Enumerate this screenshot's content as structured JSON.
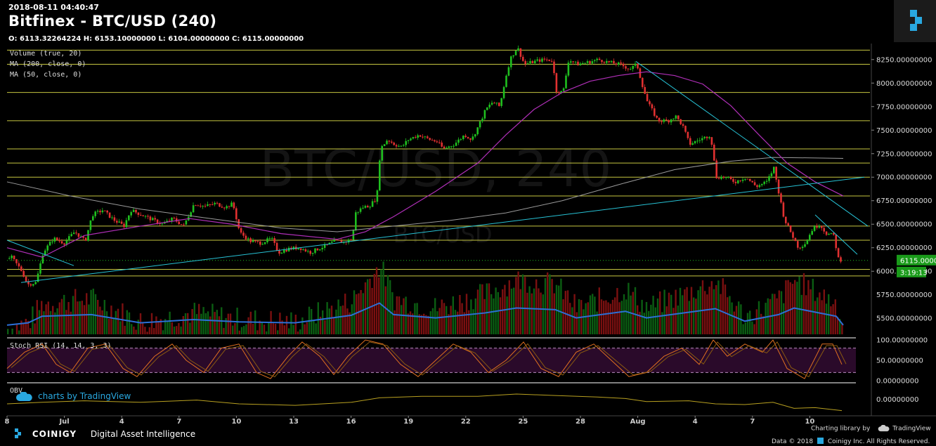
{
  "header": {
    "timestamp": "2018-08-11 04:40:47",
    "title": "Bitfinex - BTC/USD (240)",
    "ohlc": "O: 6113.32264224 H: 6153.10000000 L: 6104.00000000 C: 6115.00000000"
  },
  "watermark": {
    "main": "BTC/USD, 240",
    "sub": "BTC/USD"
  },
  "indicators": {
    "volume": "Volume (true, 20)",
    "ma200": "MA (200, close, 0)",
    "ma50": "MA (50, close, 0)",
    "stoch": "Stoch RSI (14, 14, 3, 3)",
    "obv": "OBV"
  },
  "footer": {
    "brand": "COINIGY",
    "tagline": "Digital Asset Intelligence",
    "charting_library": "Charting library by",
    "tradingview": "TradingView",
    "copyright": "Data © 2018",
    "rights": "Coinigy Inc. All Rights Reserved.",
    "tv_credit": "charts by TradingView"
  },
  "colors": {
    "up": "#1fbf1f",
    "down": "#e03030",
    "ma50": "#b02fb8",
    "ma200": "#9a9a9a",
    "hline": "#c6c640",
    "trend": "#27c3d6",
    "price_tag": "#1a9b1a"
  },
  "chart_data": [
    {
      "type": "candlestick",
      "title": "Bitfinex - BTC/USD (240)",
      "x_labels": [
        "8",
        "Jul",
        "4",
        "7",
        "10",
        "13",
        "16",
        "19",
        "22",
        "25",
        "28",
        "Aug",
        "4",
        "7",
        "10"
      ],
      "y_ticks": [
        "6000.00000000",
        "6250.00000000",
        "6500.00000000",
        "6750.00000000",
        "7000.00000000",
        "7250.00000000",
        "7500.00000000",
        "7750.00000000",
        "8000.00000000",
        "8250.00000000"
      ],
      "ylim": [
        5300,
        8420
      ],
      "horizontal_levels": [
        5950,
        6020,
        6330,
        6480,
        6800,
        7000,
        7150,
        7300,
        7600,
        7900,
        8200,
        8350
      ],
      "last_price": "6115.00000000",
      "countdown": "3:19:13",
      "volume_ticks": [
        "5500.00000000",
        "5750.00000000"
      ],
      "close_path": [
        [
          0,
          6100
        ],
        [
          15,
          6150
        ],
        [
          30,
          6000
        ],
        [
          38,
          5860
        ],
        [
          50,
          5880
        ],
        [
          60,
          6200
        ],
        [
          75,
          6350
        ],
        [
          90,
          6300
        ],
        [
          105,
          6420
        ],
        [
          120,
          6320
        ],
        [
          130,
          6600
        ],
        [
          145,
          6650
        ],
        [
          160,
          6550
        ],
        [
          175,
          6480
        ],
        [
          185,
          6650
        ],
        [
          200,
          6600
        ],
        [
          215,
          6550
        ],
        [
          230,
          6500
        ],
        [
          245,
          6560
        ],
        [
          260,
          6480
        ],
        [
          275,
          6720
        ],
        [
          290,
          6690
        ],
        [
          305,
          6720
        ],
        [
          320,
          6680
        ],
        [
          330,
          6720
        ],
        [
          340,
          6410
        ],
        [
          355,
          6320
        ],
        [
          370,
          6300
        ],
        [
          385,
          6350
        ],
        [
          395,
          6200
        ],
        [
          410,
          6240
        ],
        [
          425,
          6250
        ],
        [
          440,
          6200
        ],
        [
          455,
          6250
        ],
        [
          465,
          6280
        ],
        [
          475,
          6320
        ],
        [
          490,
          6310
        ],
        [
          500,
          6350
        ],
        [
          505,
          6620
        ],
        [
          515,
          6680
        ],
        [
          525,
          6700
        ],
        [
          535,
          6780
        ],
        [
          540,
          7300
        ],
        [
          550,
          7400
        ],
        [
          560,
          7350
        ],
        [
          570,
          7320
        ],
        [
          580,
          7400
        ],
        [
          595,
          7450
        ],
        [
          610,
          7400
        ],
        [
          620,
          7380
        ],
        [
          630,
          7300
        ],
        [
          645,
          7350
        ],
        [
          660,
          7450
        ],
        [
          670,
          7400
        ],
        [
          680,
          7550
        ],
        [
          690,
          7720
        ],
        [
          700,
          7800
        ],
        [
          710,
          7750
        ],
        [
          718,
          8050
        ],
        [
          725,
          8260
        ],
        [
          735,
          8380
        ],
        [
          745,
          8200
        ],
        [
          755,
          8220
        ],
        [
          765,
          8240
        ],
        [
          775,
          8250
        ],
        [
          785,
          8240
        ],
        [
          790,
          7920
        ],
        [
          800,
          7900
        ],
        [
          808,
          8250
        ],
        [
          820,
          8200
        ],
        [
          835,
          8220
        ],
        [
          850,
          8250
        ],
        [
          865,
          8220
        ],
        [
          880,
          8200
        ],
        [
          895,
          8150
        ],
        [
          905,
          8200
        ],
        [
          912,
          8000
        ],
        [
          920,
          7800
        ],
        [
          935,
          7600
        ],
        [
          950,
          7600
        ],
        [
          960,
          7650
        ],
        [
          970,
          7550
        ],
        [
          980,
          7350
        ],
        [
          995,
          7400
        ],
        [
          1010,
          7450
        ],
        [
          1018,
          7000
        ],
        [
          1030,
          7000
        ],
        [
          1045,
          6950
        ],
        [
          1060,
          7000
        ],
        [
          1075,
          6900
        ],
        [
          1090,
          6950
        ],
        [
          1100,
          7100
        ],
        [
          1108,
          6800
        ],
        [
          1115,
          6550
        ],
        [
          1125,
          6400
        ],
        [
          1135,
          6250
        ],
        [
          1145,
          6300
        ],
        [
          1155,
          6450
        ],
        [
          1165,
          6500
        ],
        [
          1175,
          6400
        ],
        [
          1185,
          6380
        ],
        [
          1192,
          6130
        ],
        [
          1198,
          6115
        ]
      ],
      "ma50_path": [
        [
          10,
          6250
        ],
        [
          60,
          6150
        ],
        [
          120,
          6380
        ],
        [
          200,
          6480
        ],
        [
          270,
          6560
        ],
        [
          330,
          6500
        ],
        [
          400,
          6400
        ],
        [
          480,
          6340
        ],
        [
          520,
          6420
        ],
        [
          560,
          6580
        ],
        [
          620,
          6850
        ],
        [
          680,
          7150
        ],
        [
          720,
          7450
        ],
        [
          760,
          7720
        ],
        [
          800,
          7900
        ],
        [
          840,
          8020
        ],
        [
          880,
          8080
        ],
        [
          920,
          8120
        ],
        [
          960,
          8080
        ],
        [
          1000,
          7990
        ],
        [
          1040,
          7760
        ],
        [
          1080,
          7450
        ],
        [
          1120,
          7150
        ],
        [
          1160,
          6950
        ],
        [
          1200,
          6800
        ]
      ],
      "ma200_path": [
        [
          10,
          6950
        ],
        [
          100,
          6800
        ],
        [
          200,
          6660
        ],
        [
          300,
          6560
        ],
        [
          400,
          6460
        ],
        [
          480,
          6420
        ],
        [
          560,
          6480
        ],
        [
          640,
          6540
        ],
        [
          720,
          6620
        ],
        [
          800,
          6750
        ],
        [
          880,
          6920
        ],
        [
          960,
          7080
        ],
        [
          1040,
          7170
        ],
        [
          1100,
          7210
        ],
        [
          1200,
          7200
        ]
      ],
      "trend_lines": [
        [
          [
            30,
            5880
          ],
          [
            1230,
            7000
          ]
        ],
        [
          [
            905,
            8230
          ],
          [
            1235,
            6480
          ]
        ],
        [
          [
            1160,
            6600
          ],
          [
            1220,
            6180
          ]
        ],
        [
          [
            10,
            6330
          ],
          [
            105,
            6060
          ]
        ]
      ],
      "volume_path": [
        [
          10,
          5380
        ],
        [
          40,
          5450
        ],
        [
          60,
          5650
        ],
        [
          130,
          5700
        ],
        [
          200,
          5450
        ],
        [
          275,
          5550
        ],
        [
          340,
          5480
        ],
        [
          420,
          5450
        ],
        [
          500,
          5680
        ],
        [
          540,
          6050
        ],
        [
          560,
          5700
        ],
        [
          620,
          5600
        ],
        [
          690,
          5750
        ],
        [
          735,
          5900
        ],
        [
          790,
          5850
        ],
        [
          820,
          5600
        ],
        [
          890,
          5800
        ],
        [
          920,
          5600
        ],
        [
          1018,
          5880
        ],
        [
          1060,
          5500
        ],
        [
          1108,
          5700
        ],
        [
          1130,
          5900
        ],
        [
          1190,
          5650
        ],
        [
          1200,
          5380
        ]
      ]
    },
    {
      "type": "line",
      "title": "Stoch RSI (14, 14, 3, 3)",
      "y_ticks": [
        "0.00000000",
        "50.00000000",
        "100.00000000"
      ],
      "levels": [
        20,
        80
      ],
      "ylim": [
        0,
        100
      ],
      "k_path": [
        [
          10,
          30
        ],
        [
          35,
          70
        ],
        [
          60,
          90
        ],
        [
          80,
          40
        ],
        [
          100,
          20
        ],
        [
          125,
          80
        ],
        [
          150,
          90
        ],
        [
          175,
          30
        ],
        [
          195,
          10
        ],
        [
          220,
          60
        ],
        [
          245,
          90
        ],
        [
          265,
          50
        ],
        [
          290,
          20
        ],
        [
          315,
          80
        ],
        [
          340,
          90
        ],
        [
          365,
          20
        ],
        [
          385,
          5
        ],
        [
          410,
          60
        ],
        [
          430,
          95
        ],
        [
          455,
          60
        ],
        [
          475,
          15
        ],
        [
          495,
          60
        ],
        [
          520,
          100
        ],
        [
          545,
          90
        ],
        [
          570,
          40
        ],
        [
          595,
          10
        ],
        [
          620,
          50
        ],
        [
          645,
          90
        ],
        [
          670,
          70
        ],
        [
          695,
          20
        ],
        [
          720,
          50
        ],
        [
          745,
          95
        ],
        [
          770,
          30
        ],
        [
          795,
          10
        ],
        [
          820,
          70
        ],
        [
          845,
          90
        ],
        [
          870,
          50
        ],
        [
          895,
          10
        ],
        [
          920,
          20
        ],
        [
          945,
          60
        ],
        [
          970,
          80
        ],
        [
          995,
          40
        ],
        [
          1015,
          100
        ],
        [
          1035,
          60
        ],
        [
          1060,
          90
        ],
        [
          1085,
          70
        ],
        [
          1100,
          100
        ],
        [
          1120,
          30
        ],
        [
          1145,
          5
        ],
        [
          1170,
          90
        ],
        [
          1185,
          90
        ],
        [
          1198,
          40
        ]
      ]
    },
    {
      "type": "line",
      "title": "OBV",
      "y_ticks": [
        "0.00000000"
      ],
      "ylim": [
        -100,
        100
      ],
      "obv_path": [
        [
          10,
          -30
        ],
        [
          60,
          -20
        ],
        [
          120,
          -10
        ],
        [
          200,
          -20
        ],
        [
          280,
          -5
        ],
        [
          340,
          -30
        ],
        [
          420,
          -40
        ],
        [
          500,
          -20
        ],
        [
          540,
          10
        ],
        [
          600,
          20
        ],
        [
          680,
          20
        ],
        [
          735,
          35
        ],
        [
          790,
          25
        ],
        [
          850,
          15
        ],
        [
          890,
          5
        ],
        [
          920,
          -15
        ],
        [
          980,
          -10
        ],
        [
          1018,
          -30
        ],
        [
          1060,
          -35
        ],
        [
          1100,
          -20
        ],
        [
          1130,
          -60
        ],
        [
          1160,
          -55
        ],
        [
          1198,
          -75
        ]
      ]
    }
  ]
}
